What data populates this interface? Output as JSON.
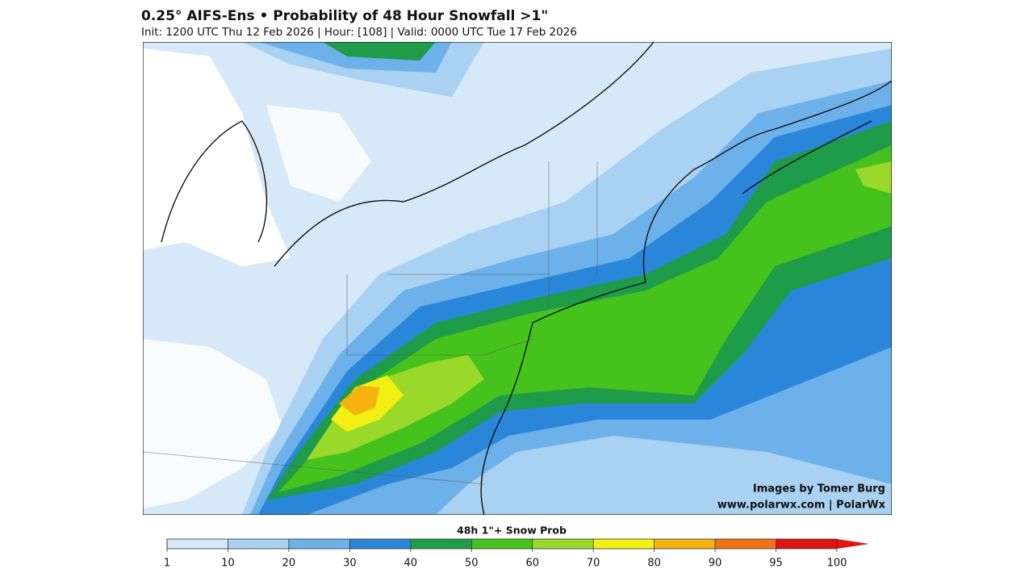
{
  "header": {
    "title": "0.25° AIFS-Ens • Probability of 48 Hour Snowfall >1\"",
    "subtitle": "Init: 1200 UTC Thu 12 Feb 2026 | Hour: [108] | Valid: 0000 UTC Tue 17 Feb 2026"
  },
  "credits": [
    "Images by Tomer Burg",
    "www.polarwx.com | PolarWx"
  ],
  "colorbar": {
    "label": "48h 1\"+ Snow Prob",
    "ticks": [
      1,
      10,
      20,
      30,
      40,
      50,
      60,
      70,
      80,
      90,
      95,
      100
    ],
    "colors": [
      "#d6e9f8",
      "#a9d1f2",
      "#6cb1e9",
      "#2a86d9",
      "#1f9c4a",
      "#45c31c",
      "#9ad92a",
      "#f2ef12",
      "#f5b30f",
      "#f07214",
      "#e01212",
      "#e01212"
    ]
  }
}
